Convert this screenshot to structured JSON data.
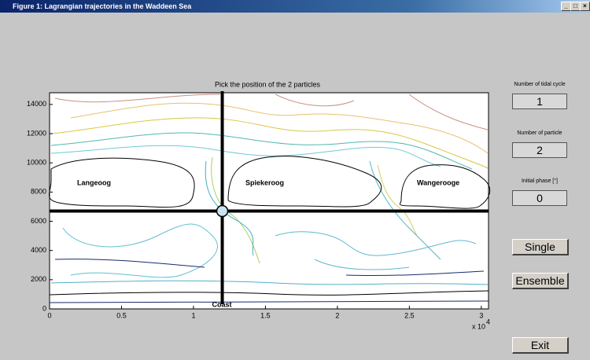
{
  "window": {
    "title": "Figure 1: Lagrangian trajectories in the Waddeen Sea"
  },
  "plot": {
    "title": "Pick the position of the 2 particles",
    "xlim": [
      0,
      3.05
    ],
    "ylim": [
      0,
      14800
    ],
    "xticks": [
      0,
      0.5,
      1,
      1.5,
      2,
      2.5,
      3
    ],
    "yticks": [
      0,
      2000,
      4000,
      6000,
      8000,
      10000,
      12000,
      14000
    ],
    "x_exponent": {
      "base": "x 10",
      "power": "4"
    },
    "annotations": [
      "Langeoog",
      "Spiekeroog",
      "Wangerooge",
      "Coast"
    ],
    "picked_point": {
      "x": 1.2,
      "y": 6700
    }
  },
  "panel": {
    "fields": [
      {
        "label": "Number of tidal cycle",
        "value": "1"
      },
      {
        "label": "Number of particle",
        "value": "2"
      },
      {
        "label": "Initial phase [°]",
        "value": "0"
      }
    ],
    "buttons": [
      "Single",
      "Ensemble",
      "Exit"
    ]
  }
}
